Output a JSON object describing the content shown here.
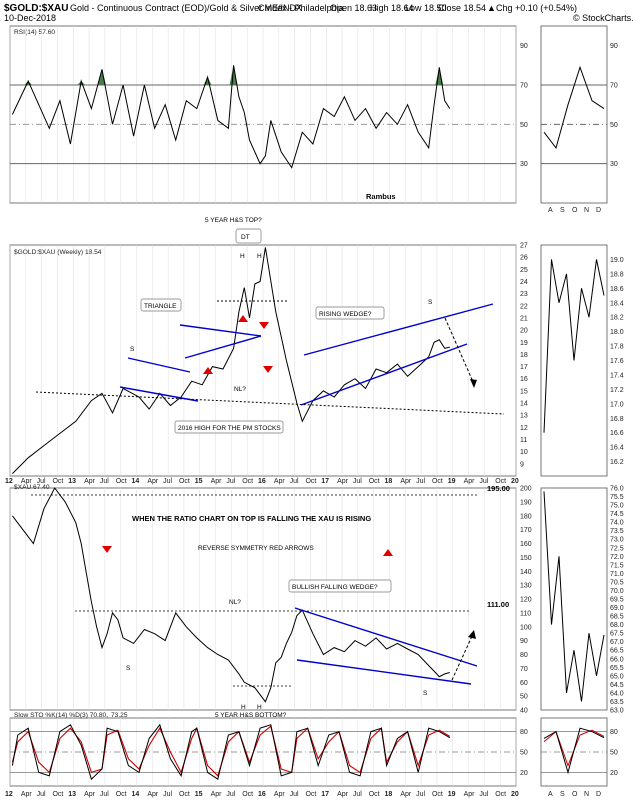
{
  "header": {
    "symbol": "$GOLD:$XAU",
    "description": "Gold - Continuous Contract (EOD)/Gold & Silver Index - Philadelphia",
    "exchange": "CME/INDX",
    "date": "10-Dec-2018",
    "open": "Open 18.63",
    "high": "High 18.64",
    "low": "Low 18.50",
    "close": "Close 18.54",
    "change": "Chg +0.10 (+0.54%)",
    "change_arrow": "▲",
    "brand": "© StockCharts.com"
  },
  "colors": {
    "up": "#00a000",
    "price": "#000000",
    "trend": "#0000cc",
    "arrow": "#e00000",
    "stoch_d": "#cc0000",
    "rsi_fill": "#4a7a4a",
    "grid": "#888888"
  },
  "chart_data": [
    {
      "type": "line",
      "title": "RSI(14) 57.60",
      "author": "Rambus",
      "ylim": [
        10,
        100
      ],
      "y_ticks": [
        "90",
        "70",
        "50",
        "30"
      ],
      "reference_levels": [
        70,
        50,
        30
      ],
      "x": [
        "2012-01",
        "2012-04",
        "2012-08",
        "2012-10",
        "2012-12",
        "2013-02",
        "2013-04",
        "2013-06",
        "2013-08",
        "2013-10",
        "2013-12",
        "2014-02",
        "2014-04",
        "2014-06",
        "2014-08",
        "2014-10",
        "2014-12",
        "2015-02",
        "2015-04",
        "2015-06",
        "2015-07",
        "2015-08",
        "2015-09",
        "2015-10",
        "2015-12",
        "2016-01",
        "2016-02",
        "2016-04",
        "2016-06",
        "2016-08",
        "2016-10",
        "2016-12",
        "2017-02",
        "2017-04",
        "2017-06",
        "2017-08",
        "2017-10",
        "2017-12",
        "2018-02",
        "2018-04",
        "2018-06",
        "2018-08",
        "2018-09",
        "2018-10",
        "2018-11",
        "2018-12"
      ],
      "values": [
        55,
        72,
        48,
        62,
        40,
        72,
        58,
        78,
        50,
        70,
        44,
        70,
        48,
        60,
        42,
        62,
        58,
        74,
        52,
        48,
        80,
        64,
        56,
        42,
        30,
        34,
        52,
        36,
        28,
        46,
        40,
        58,
        54,
        64,
        52,
        58,
        48,
        56,
        50,
        60,
        46,
        38,
        60,
        79,
        62,
        58
      ],
      "inset": {
        "x_labels": [
          "A",
          "S",
          "O",
          "N",
          "D"
        ],
        "y_ticks": [
          "90",
          "70",
          "50",
          "30"
        ]
      }
    },
    {
      "type": "line",
      "title": "$GOLD:$XAU (Weekly) 18.54",
      "ylim": [
        8,
        27
      ],
      "y_ticks": [
        "27",
        "26",
        "25",
        "24",
        "23",
        "22",
        "21",
        "20",
        "19",
        "18",
        "17",
        "16",
        "15",
        "14",
        "13",
        "12",
        "11",
        "10",
        "9"
      ],
      "x_ticks": [
        "12",
        "Apr",
        "Jul",
        "Oct",
        "13",
        "Apr",
        "Jul",
        "Oct",
        "14",
        "Apr",
        "Jul",
        "Oct",
        "15",
        "Apr",
        "Jul",
        "Oct",
        "16",
        "Apr",
        "Jul",
        "Oct",
        "17",
        "Apr",
        "Jul",
        "Oct",
        "18",
        "Apr",
        "Jul",
        "Oct",
        "19",
        "Apr",
        "Jul",
        "Oct",
        "20"
      ],
      "x": [
        "2012-01",
        "2012-04",
        "2012-07",
        "2012-10",
        "2013-01",
        "2013-04",
        "2013-06",
        "2013-08",
        "2013-10",
        "2014-01",
        "2014-03",
        "2014-05",
        "2014-07",
        "2014-09",
        "2014-11",
        "2015-01",
        "2015-03",
        "2015-05",
        "2015-07",
        "2015-08",
        "2015-09",
        "2015-10",
        "2015-11",
        "2015-12",
        "2016-01",
        "2016-03",
        "2016-05",
        "2016-07",
        "2016-08",
        "2016-10",
        "2016-12",
        "2017-02",
        "2017-04",
        "2017-06",
        "2017-08",
        "2017-10",
        "2017-12",
        "2018-02",
        "2018-04",
        "2018-06",
        "2018-08",
        "2018-09",
        "2018-10",
        "2018-11",
        "2018-12"
      ],
      "values": [
        8.2,
        9.5,
        10.5,
        11.5,
        12.5,
        14.2,
        14.8,
        13.2,
        15.2,
        14.5,
        13.5,
        14.8,
        13.8,
        14.5,
        15.8,
        15.5,
        17.0,
        16.8,
        18.5,
        21.5,
        23.5,
        21.0,
        23.8,
        24.0,
        26.8,
        21.5,
        17.5,
        14.0,
        12.5,
        14.2,
        15.0,
        14.5,
        15.5,
        16.0,
        15.2,
        16.8,
        16.5,
        17.2,
        16.2,
        17.0,
        17.8,
        19.0,
        19.2,
        18.5,
        18.6
      ],
      "inset": {
        "y_ticks": [
          "19.0",
          "18.8",
          "18.6",
          "18.4",
          "18.2",
          "18.0",
          "17.8",
          "17.6",
          "17.4",
          "17.2",
          "17.0",
          "16.8",
          "16.6",
          "16.4",
          "16.2"
        ]
      },
      "annotations": [
        "5 YEAR H&S TOP?",
        "DT",
        "H",
        "H",
        "S",
        "S",
        "TRIANGLE",
        "RISING WEDGE?",
        "NL?",
        "2016 HIGH FOR THE PM STOCKS"
      ]
    },
    {
      "type": "line",
      "title": "$XAU 67.40",
      "ylim": [
        40,
        200
      ],
      "y_ticks": [
        "200",
        "190",
        "180",
        "170",
        "160",
        "150",
        "140",
        "130",
        "120",
        "110",
        "100",
        "90",
        "80",
        "70",
        "60",
        "50",
        "40"
      ],
      "levels": [
        "195.00",
        "111.00"
      ],
      "x": [
        "2012-01",
        "2012-03",
        "2012-05",
        "2012-07",
        "2012-09",
        "2012-11",
        "2013-01",
        "2013-02",
        "2013-03",
        "2013-04",
        "2013-05",
        "2013-06",
        "2013-07",
        "2013-08",
        "2013-09",
        "2013-10",
        "2013-12",
        "2014-02",
        "2014-04",
        "2014-06",
        "2014-08",
        "2014-10",
        "2014-12",
        "2015-02",
        "2015-04",
        "2015-06",
        "2015-08",
        "2015-09",
        "2015-11",
        "2016-01",
        "2016-02",
        "2016-03",
        "2016-04",
        "2016-05",
        "2016-06",
        "2016-07",
        "2016-08",
        "2016-10",
        "2016-12",
        "2017-02",
        "2017-04",
        "2017-06",
        "2017-08",
        "2017-10",
        "2017-12",
        "2018-02",
        "2018-04",
        "2018-06",
        "2018-08",
        "2018-09",
        "2018-10",
        "2018-11",
        "2018-12"
      ],
      "values": [
        180,
        170,
        160,
        185,
        200,
        190,
        175,
        160,
        140,
        118,
        100,
        85,
        95,
        110,
        105,
        92,
        88,
        98,
        95,
        90,
        110,
        100,
        92,
        85,
        80,
        76,
        66,
        60,
        56,
        46,
        56,
        74,
        78,
        88,
        96,
        108,
        112,
        95,
        80,
        85,
        82,
        90,
        86,
        92,
        84,
        88,
        84,
        80,
        72,
        68,
        64,
        66,
        67
      ],
      "inset": {
        "y_ticks": [
          "76.0",
          "75.5",
          "75.0",
          "74.5",
          "74.0",
          "73.5",
          "73.0",
          "72.5",
          "72.0",
          "71.5",
          "71.0",
          "70.5",
          "70.0",
          "69.5",
          "69.0",
          "68.5",
          "68.0",
          "67.5",
          "67.0",
          "66.5",
          "66.0",
          "65.5",
          "65.0",
          "64.5",
          "64.0",
          "63.5",
          "63.0"
        ]
      },
      "annotations": [
        "WHEN THE RATIO CHART ON TOP IS FALLING THE XAU IS RISING",
        "REVERSE SYMMETRY RED ARROWS",
        "BULLISH FALLING WEDGE?",
        "NL?",
        "S",
        "S",
        "H",
        "H",
        "5 YEAR H&S BOTTOM?"
      ]
    },
    {
      "type": "line",
      "title": "Slow STO %K(14) %D(3) 70.80, 73.25",
      "title_main": "Slow STO %K(14) %D(3) 70.80,",
      "title_d": "73.25",
      "ylim": [
        0,
        100
      ],
      "y_ticks": [
        "80",
        "50",
        "20"
      ],
      "x_ticks": [
        "12",
        "Apr",
        "Jul",
        "Oct",
        "13",
        "Apr",
        "Jul",
        "Oct",
        "14",
        "Apr",
        "Jul",
        "Oct",
        "15",
        "Apr",
        "Jul",
        "Oct",
        "16",
        "Apr",
        "Jul",
        "Oct",
        "17",
        "Apr",
        "Jul",
        "Oct",
        "18",
        "Apr",
        "Jul",
        "Oct",
        "19",
        "Apr",
        "Jul",
        "Oct",
        "20"
      ],
      "series": [
        {
          "name": "%K",
          "values": [
            30,
            75,
            85,
            20,
            15,
            80,
            90,
            60,
            10,
            25,
            85,
            80,
            30,
            20,
            70,
            90,
            40,
            15,
            80,
            85,
            20,
            10,
            75,
            80,
            30,
            85,
            90,
            15,
            20,
            80,
            85,
            30,
            75,
            80,
            20,
            15,
            80,
            85,
            30,
            70,
            80,
            20,
            85,
            80,
            71
          ]
        },
        {
          "name": "%D",
          "values": [
            35,
            65,
            80,
            35,
            20,
            70,
            85,
            65,
            20,
            25,
            75,
            82,
            40,
            25,
            60,
            85,
            50,
            20,
            70,
            85,
            30,
            15,
            65,
            80,
            35,
            75,
            88,
            25,
            20,
            70,
            85,
            40,
            65,
            80,
            30,
            20,
            70,
            85,
            35,
            65,
            80,
            30,
            75,
            82,
            73
          ]
        }
      ],
      "inset": {
        "x_labels": [
          "A",
          "S",
          "O",
          "N",
          "D"
        ]
      }
    }
  ]
}
